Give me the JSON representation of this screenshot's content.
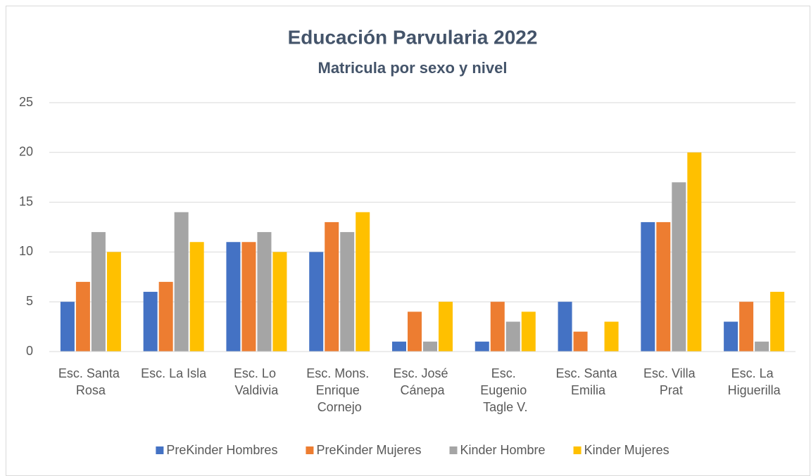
{
  "chart_data": {
    "type": "bar",
    "title": "Educación Parvularia 2022",
    "subtitle": "Matricula por sexo y nivel",
    "categories": [
      "Esc. Santa Rosa",
      "Esc. La Isla",
      "Esc. Lo Valdivia",
      "Esc. Mons. Enrique Cornejo",
      "Esc. José Cánepa",
      "Esc. Eugenio Tagle V.",
      "Esc. Santa Emilia",
      "Esc. Villa Prat",
      "Esc. La Higuerilla"
    ],
    "series": [
      {
        "name": "PreKinder Hombres",
        "color": "#4472c4",
        "values": [
          5,
          6,
          11,
          10,
          1,
          1,
          5,
          13,
          3
        ]
      },
      {
        "name": "PreKinder Mujeres",
        "color": "#ed7d31",
        "values": [
          7,
          7,
          11,
          13,
          4,
          5,
          2,
          13,
          5
        ]
      },
      {
        "name": "Kinder Hombre",
        "color": "#a5a5a5",
        "values": [
          12,
          14,
          12,
          12,
          1,
          3,
          0,
          17,
          1
        ]
      },
      {
        "name": "Kinder Mujeres",
        "color": "#ffc000",
        "values": [
          10,
          11,
          10,
          14,
          5,
          4,
          3,
          20,
          6
        ]
      }
    ],
    "ylim": [
      0,
      25
    ],
    "yticks": [
      0,
      5,
      10,
      15,
      20,
      25
    ],
    "grid": true,
    "legend": "bottom"
  }
}
